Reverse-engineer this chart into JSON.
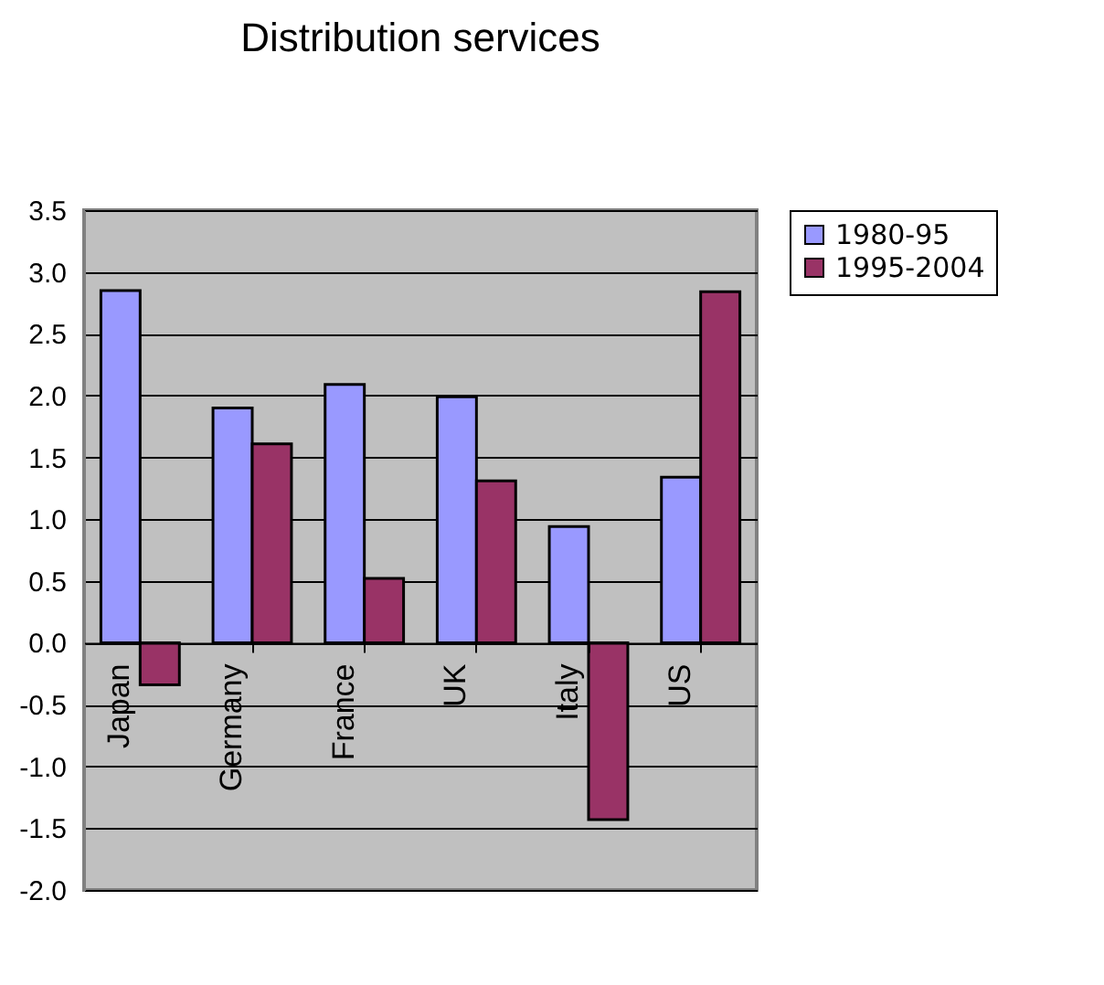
{
  "chart_data": {
    "type": "bar",
    "title": "Distribution services",
    "categories": [
      "Japan",
      "Germany",
      "France",
      "UK",
      "Italy",
      "US"
    ],
    "series": [
      {
        "name": "1980-95",
        "color": "#9999ff",
        "values": [
          2.85,
          1.9,
          2.09,
          1.99,
          0.94,
          1.34
        ]
      },
      {
        "name": "1995-2004",
        "color": "#993366",
        "values": [
          -0.34,
          1.61,
          0.52,
          1.31,
          -1.43,
          2.84
        ]
      }
    ],
    "ylim": [
      -2.0,
      3.5
    ],
    "yticks": [
      {
        "value": -2.0,
        "label": "-2.0"
      },
      {
        "value": -1.5,
        "label": "-1.5"
      },
      {
        "value": -1.0,
        "label": "-1.0"
      },
      {
        "value": -0.5,
        "label": "-0.5"
      },
      {
        "value": 0,
        "label": "0.0"
      },
      {
        "value": 0.5,
        "label": "0.5"
      },
      {
        "value": 1.0,
        "label": "1.0"
      },
      {
        "value": 1.5,
        "label": "1.5"
      },
      {
        "value": 2.0,
        "label": "2.0"
      },
      {
        "value": 2.5,
        "label": "2.5"
      },
      {
        "value": 3.0,
        "label": "3.0"
      },
      {
        "value": 3.5,
        "label": "3.5"
      }
    ],
    "grid": "y",
    "legend": "right"
  }
}
